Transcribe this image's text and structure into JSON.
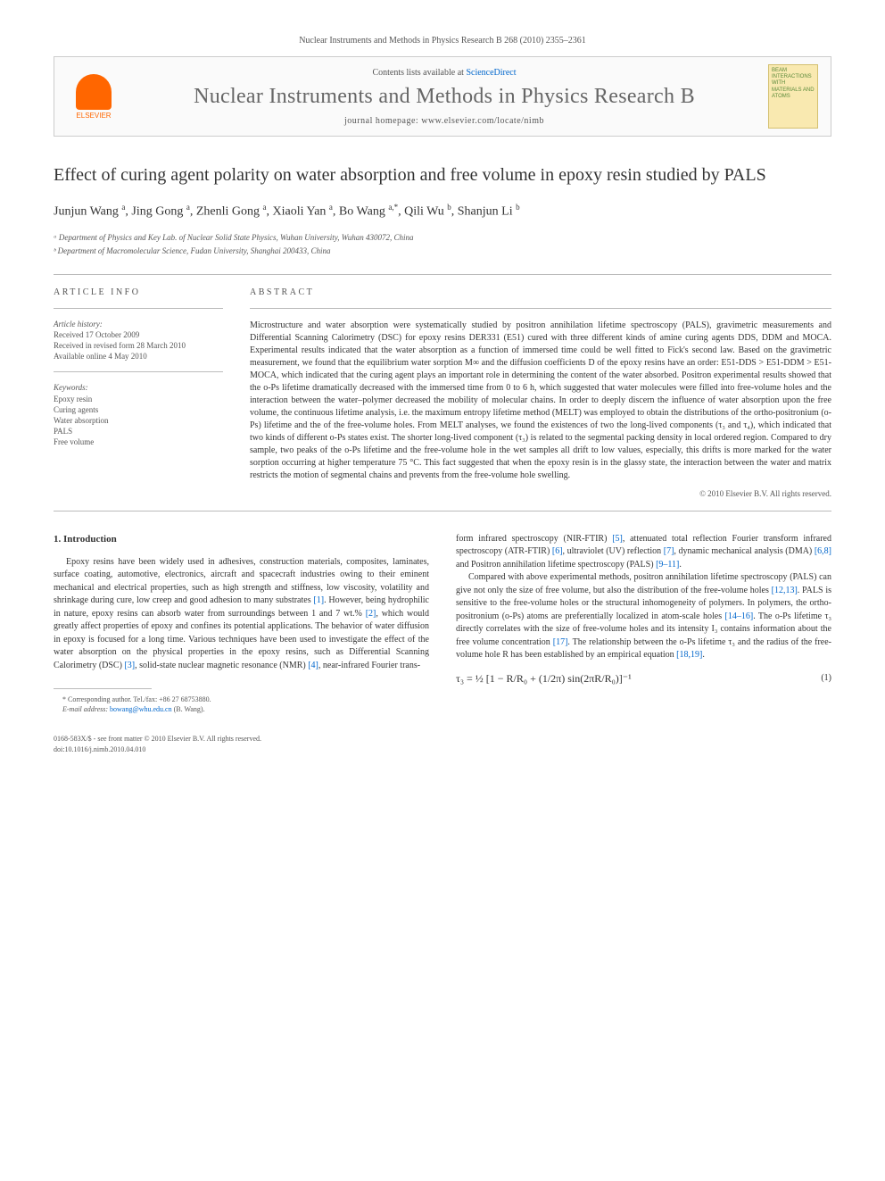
{
  "journal_ref": "Nuclear Instruments and Methods in Physics Research B 268 (2010) 2355–2361",
  "header": {
    "elsevier": "ELSEVIER",
    "contents_prefix": "Contents lists available at ",
    "contents_link": "ScienceDirect",
    "journal_name": "Nuclear Instruments and Methods in Physics Research B",
    "homepage_prefix": "journal homepage: ",
    "homepage_url": "www.elsevier.com/locate/nimb",
    "cover_text": "BEAM INTERACTIONS WITH MATERIALS AND ATOMS"
  },
  "title": "Effect of curing agent polarity on water absorption and free volume in epoxy resin studied by PALS",
  "authors_html": "Junjun Wang <sup>a</sup>, Jing Gong <sup>a</sup>, Zhenli Gong <sup>a</sup>, Xiaoli Yan <sup>a</sup>, Bo Wang <sup>a,*</sup>, Qili Wu <sup>b</sup>, Shanjun Li <sup>b</sup>",
  "affiliations": [
    "ᵃ Department of Physics and Key Lab. of Nuclear Solid State Physics, Wuhan University, Wuhan 430072, China",
    "ᵇ Department of Macromolecular Science, Fudan University, Shanghai 200433, China"
  ],
  "info_heading": "ARTICLE INFO",
  "abstract_heading": "ABSTRACT",
  "history": {
    "label": "Article history:",
    "items": [
      "Received 17 October 2009",
      "Received in revised form 28 March 2010",
      "Available online 4 May 2010"
    ]
  },
  "keywords": {
    "label": "Keywords:",
    "items": [
      "Epoxy resin",
      "Curing agents",
      "Water absorption",
      "PALS",
      "Free volume"
    ]
  },
  "abstract": "Microstructure and water absorption were systematically studied by positron annihilation lifetime spectroscopy (PALS), gravimetric measurements and Differential Scanning Calorimetry (DSC) for epoxy resins DER331 (E51) cured with three different kinds of amine curing agents DDS, DDM and MOCA. Experimental results indicated that the water absorption as a function of immersed time could be well fitted to Fick's second law. Based on the gravimetric measurement, we found that the equilibrium water sorption M∞ and the diffusion coefficients D of the epoxy resins have an order: E51-DDS > E51-DDM > E51-MOCA, which indicated that the curing agent plays an important role in determining the content of the water absorbed. Positron experimental results showed that the o-Ps lifetime dramatically decreased with the immersed time from 0 to 6 h, which suggested that water molecules were filled into free-volume holes and the interaction between the water–polymer decreased the mobility of molecular chains. In order to deeply discern the influence of water absorption upon the free volume, the continuous lifetime analysis, i.e. the maximum entropy lifetime method (MELT) was employed to obtain the distributions of the ortho-positronium (o-Ps) lifetime and the of the free-volume holes. From MELT analyses, we found the existences of two the long-lived components (τ₃ and τ₄), which indicated that two kinds of different o-Ps states exist. The shorter long-lived component (τ₃) is related to the segmental packing density in local ordered region. Compared to dry sample, two peaks of the o-Ps lifetime and the free-volume hole in the wet samples all drift to low values, especially, this drifts is more marked for the water sorption occurring at higher temperature 75 °C. This fact suggested that when the epoxy resin is in the glassy state, the interaction between the water and matrix restricts the motion of segmental chains and prevents from the free-volume hole swelling.",
  "copyright": "© 2010 Elsevier B.V. All rights reserved.",
  "section1_heading": "1. Introduction",
  "col1_p1a": "Epoxy resins have been widely used in adhesives, construction materials, composites, laminates, surface coating, automotive, electronics, aircraft and spacecraft industries owing to their eminent mechanical and electrical properties, such as high strength and stiffness, low viscosity, volatility and shrinkage during cure, low creep and good adhesion to many substrates ",
  "ref1": "[1]",
  "col1_p1b": ". However, being hydrophilic in nature, epoxy resins can absorb water from surroundings between 1 and 7 wt.% ",
  "ref2": "[2]",
  "col1_p1c": ", which would greatly affect properties of epoxy and confines its potential applications. The behavior of water diffusion in epoxy is focused for a long time. Various techniques have been used to investigate the effect of the water absorption on the physical properties in the epoxy resins, such as Differential Scanning Calorimetry (DSC) ",
  "ref3": "[3]",
  "col1_p1d": ", solid-state nuclear magnetic resonance (NMR) ",
  "ref4": "[4]",
  "col1_p1e": ", near-infrared Fourier trans-",
  "col2_p1a": "form infrared spectroscopy (NIR-FTIR) ",
  "ref5": "[5]",
  "col2_p1b": ", attenuated total reflection Fourier transform infrared spectroscopy (ATR-FTIR) ",
  "ref6": "[6]",
  "col2_p1c": ", ultraviolet (UV) reflection ",
  "ref7": "[7]",
  "col2_p1d": ", dynamic mechanical analysis (DMA) ",
  "ref68": "[6,8]",
  "col2_p1e": " and Positron annihilation lifetime spectroscopy (PALS) ",
  "ref911": "[9–11]",
  "col2_p1f": ".",
  "col2_p2a": "Compared with above experimental methods, positron annihilation lifetime spectroscopy (PALS) can give not only the size of free volume, but also the distribution of the free-volume holes ",
  "ref1213": "[12,13]",
  "col2_p2b": ". PALS is sensitive to the free-volume holes or the structural inhomogeneity of polymers. In polymers, the ortho-positronium (o-Ps) atoms are preferentially localized in atom-scale holes ",
  "ref1416": "[14–16]",
  "col2_p2c": ". The o-Ps lifetime τ₃ directly correlates with the size of free-volume holes and its intensity I₃ contains information about the free volume concentration ",
  "ref17": "[17]",
  "col2_p2d": ". The relationship between the o-Ps lifetime τ₃ and the radius of the free-volume hole R has been established by an empirical equation ",
  "ref1819": "[18,19]",
  "col2_p2e": ".",
  "equation": "τ₃ = ½ [1 − R/R₀ + (1/2π) sin(2πR/R₀)]⁻¹",
  "eq_num": "(1)",
  "footnote": {
    "line1": "* Corresponding author. Tel./fax: +86 27 68753880.",
    "line2_label": "E-mail address: ",
    "line2_email": "bowang@whu.edu.cn",
    "line2_suffix": " (B. Wang)."
  },
  "bottom": {
    "line1": "0168-583X/$ - see front matter © 2010 Elsevier B.V. All rights reserved.",
    "line2": "doi:10.1016/j.nimb.2010.04.010"
  },
  "colors": {
    "text": "#333333",
    "muted": "#555555",
    "link": "#0066cc",
    "border": "#bbbbbb",
    "elsevier": "#ff6600",
    "cover_bg": "#f9e9b0",
    "cover_text": "#5b8a3a"
  }
}
